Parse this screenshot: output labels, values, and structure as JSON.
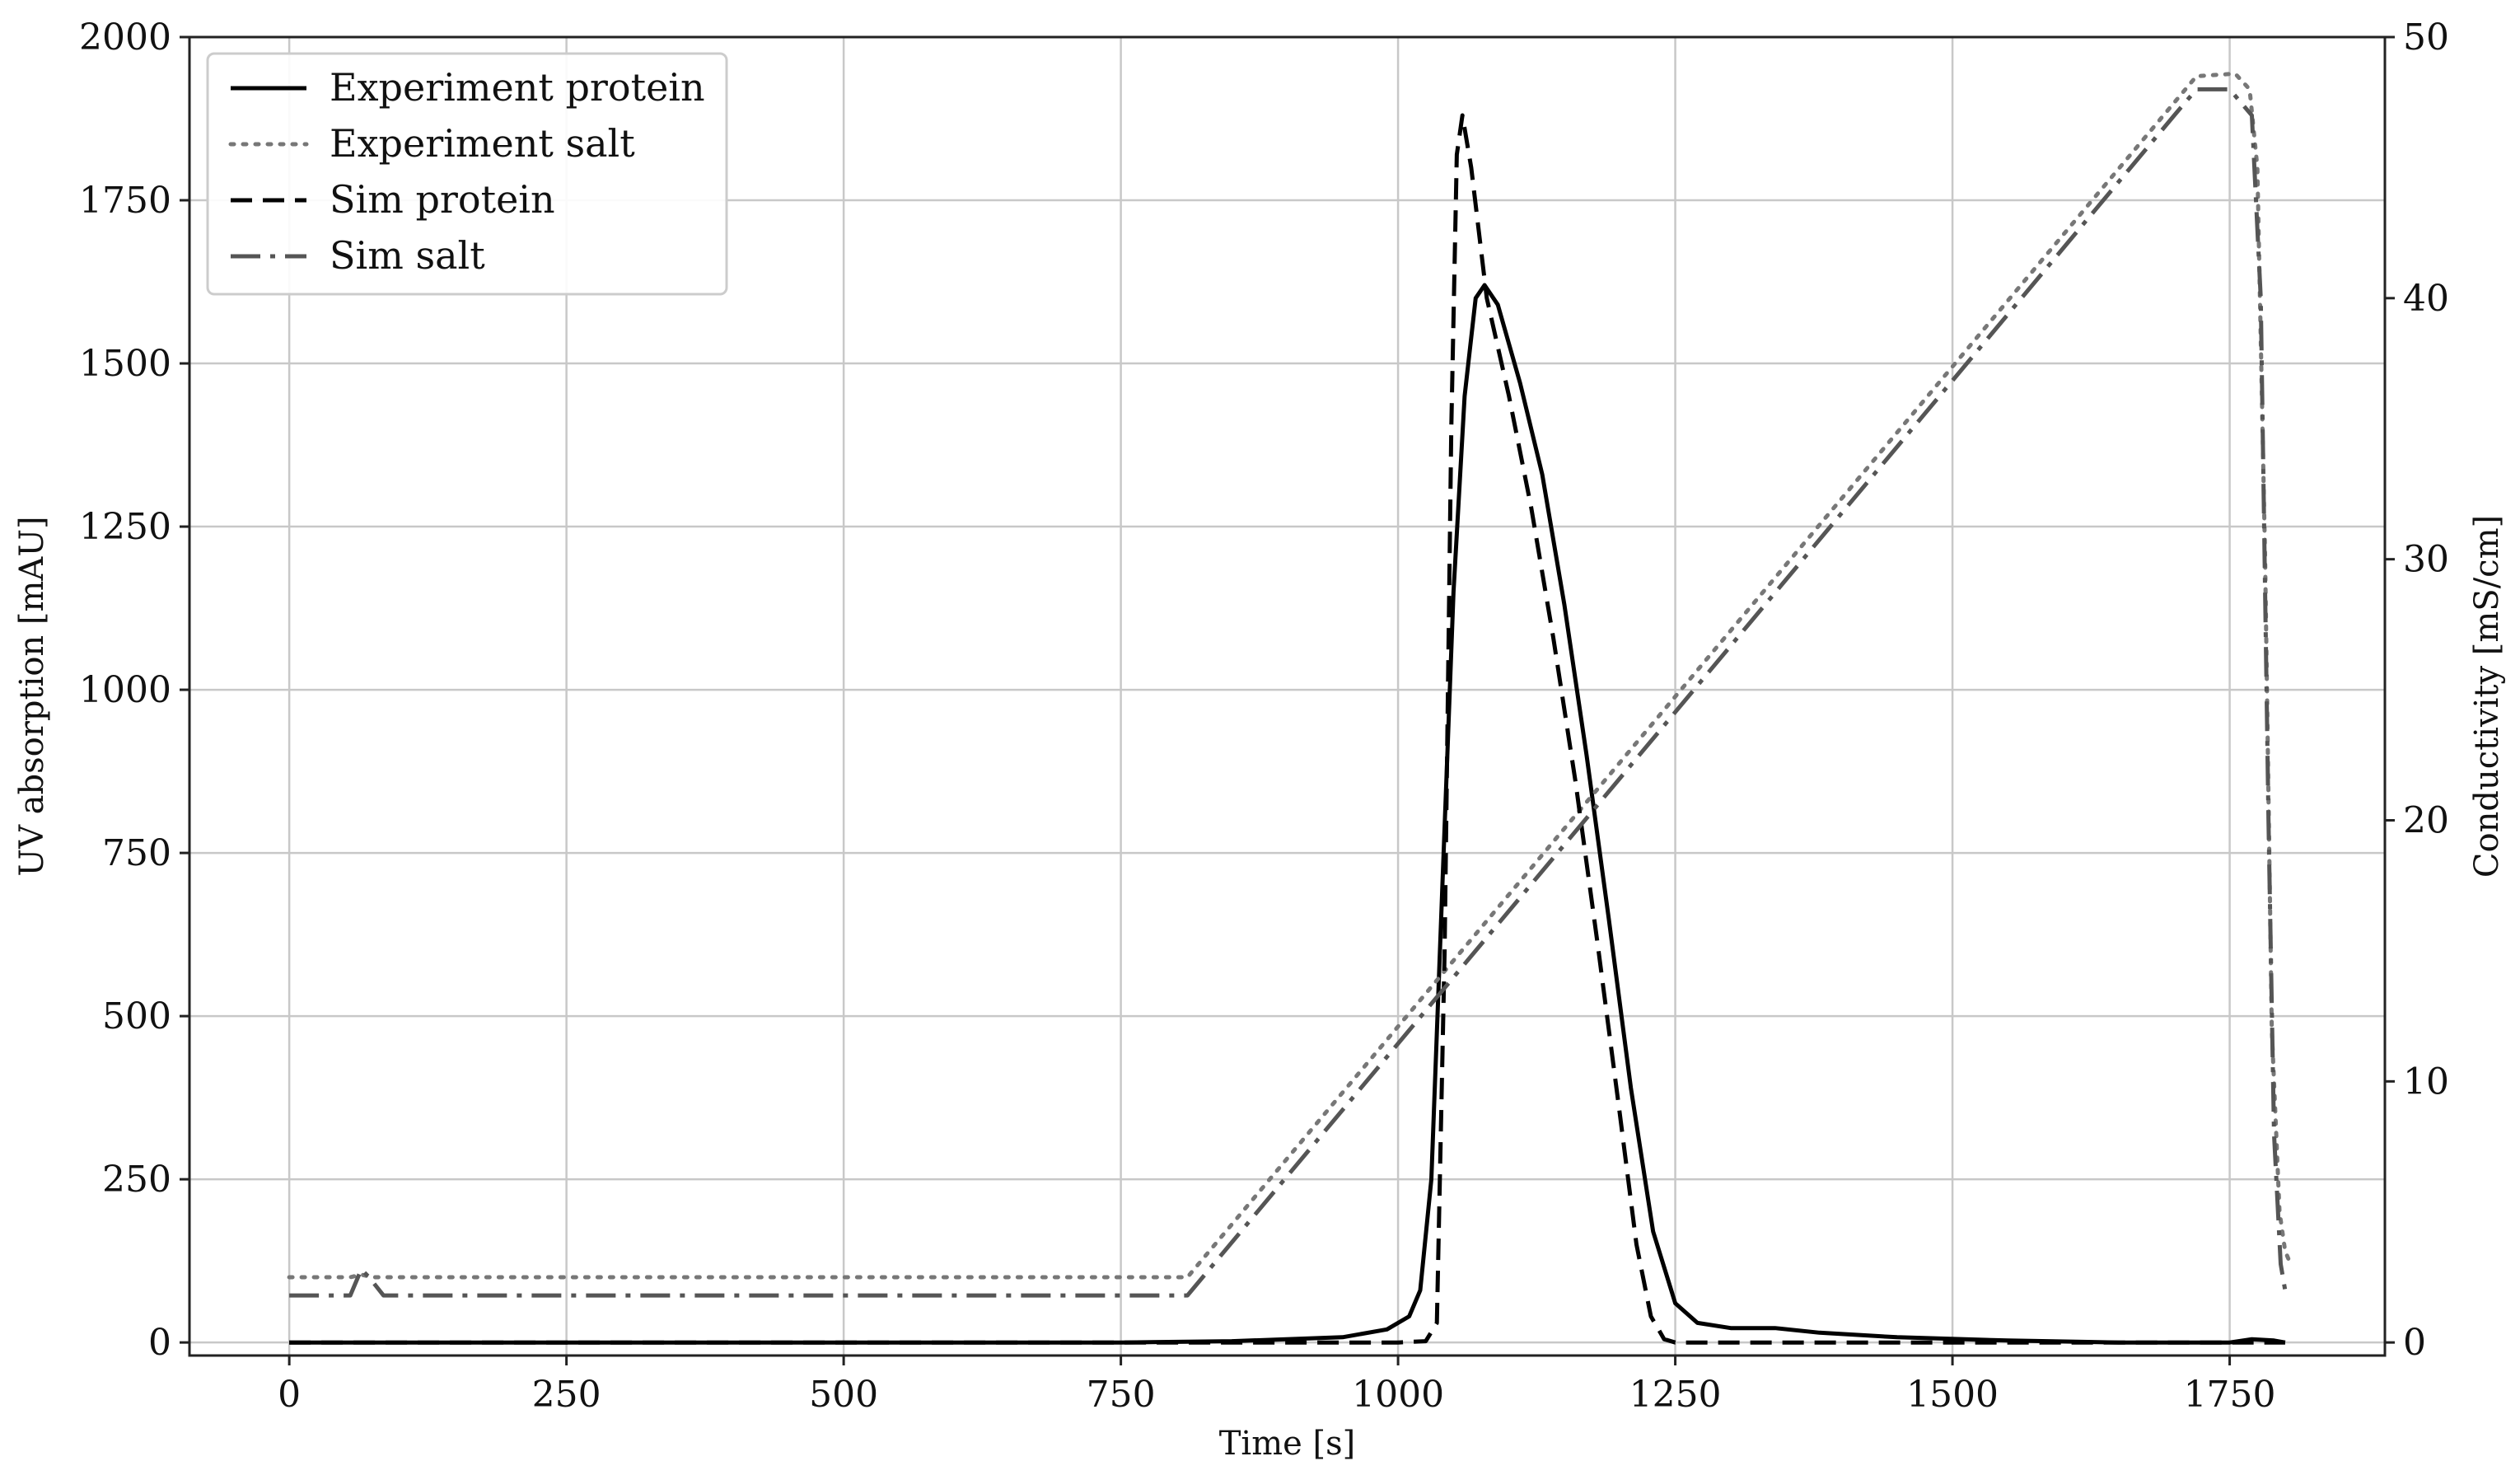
{
  "chart_data": {
    "type": "line",
    "xlabel": "Time [s]",
    "ylabel": "UV absorption [mAU]",
    "y2label": "Conductivity [mS/cm]",
    "xlim": [
      -90,
      1890
    ],
    "ylim": [
      -20,
      2000
    ],
    "y2lim": [
      -0.5,
      50
    ],
    "xticks": [
      0,
      250,
      500,
      750,
      1000,
      1250,
      1500,
      1750
    ],
    "yticks": [
      0,
      250,
      500,
      750,
      1000,
      1250,
      1500,
      1750,
      2000
    ],
    "y2ticks": [
      0,
      10,
      20,
      30,
      40,
      50
    ],
    "grid": true,
    "legend_position": "top-left",
    "series": [
      {
        "name": "Experiment protein",
        "axis": "left",
        "color": "#000000",
        "style": "solid",
        "points": [
          [
            0,
            0
          ],
          [
            200,
            0
          ],
          [
            500,
            0
          ],
          [
            750,
            0
          ],
          [
            850,
            2
          ],
          [
            950,
            8
          ],
          [
            990,
            20
          ],
          [
            1010,
            40
          ],
          [
            1020,
            80
          ],
          [
            1030,
            250
          ],
          [
            1040,
            700
          ],
          [
            1050,
            1150
          ],
          [
            1060,
            1450
          ],
          [
            1070,
            1600
          ],
          [
            1078,
            1620
          ],
          [
            1090,
            1590
          ],
          [
            1110,
            1470
          ],
          [
            1130,
            1330
          ],
          [
            1150,
            1130
          ],
          [
            1170,
            900
          ],
          [
            1190,
            650
          ],
          [
            1210,
            390
          ],
          [
            1230,
            170
          ],
          [
            1250,
            60
          ],
          [
            1270,
            30
          ],
          [
            1300,
            22
          ],
          [
            1340,
            22
          ],
          [
            1380,
            15
          ],
          [
            1450,
            8
          ],
          [
            1550,
            3
          ],
          [
            1650,
            0
          ],
          [
            1750,
            0
          ],
          [
            1770,
            5
          ],
          [
            1790,
            3
          ],
          [
            1800,
            0
          ]
        ]
      },
      {
        "name": "Experiment salt",
        "axis": "right",
        "color": "#777777",
        "style": "dotted",
        "points": [
          [
            0,
            2.5
          ],
          [
            55,
            2.5
          ],
          [
            65,
            2.6
          ],
          [
            75,
            2.5
          ],
          [
            100,
            2.5
          ],
          [
            810,
            2.5
          ],
          [
            1720,
            48.5
          ],
          [
            1755,
            48.6
          ],
          [
            1768,
            48.0
          ],
          [
            1775,
            45.0
          ],
          [
            1782,
            30.0
          ],
          [
            1788,
            12.0
          ],
          [
            1795,
            5.0
          ],
          [
            1800,
            3.5
          ],
          [
            1805,
            3.0
          ]
        ]
      },
      {
        "name": "Sim protein",
        "axis": "left",
        "color": "#000000",
        "style": "dashed",
        "points": [
          [
            0,
            0
          ],
          [
            500,
            0
          ],
          [
            1000,
            0
          ],
          [
            1025,
            2
          ],
          [
            1035,
            30
          ],
          [
            1042,
            600
          ],
          [
            1048,
            1400
          ],
          [
            1053,
            1820
          ],
          [
            1058,
            1880
          ],
          [
            1066,
            1800
          ],
          [
            1080,
            1600
          ],
          [
            1100,
            1450
          ],
          [
            1120,
            1280
          ],
          [
            1140,
            1080
          ],
          [
            1160,
            860
          ],
          [
            1180,
            610
          ],
          [
            1200,
            350
          ],
          [
            1215,
            150
          ],
          [
            1228,
            40
          ],
          [
            1240,
            5
          ],
          [
            1250,
            0
          ],
          [
            1500,
            0
          ],
          [
            1800,
            0
          ]
        ]
      },
      {
        "name": "Sim salt",
        "axis": "right",
        "color": "#555555",
        "style": "dashdot",
        "points": [
          [
            0,
            1.8
          ],
          [
            55,
            1.8
          ],
          [
            65,
            2.8
          ],
          [
            72,
            2.5
          ],
          [
            85,
            1.8
          ],
          [
            810,
            1.8
          ],
          [
            1700,
            47.0
          ],
          [
            1720,
            48.0
          ],
          [
            1750,
            48.0
          ],
          [
            1770,
            47.0
          ],
          [
            1778,
            40.0
          ],
          [
            1785,
            20.0
          ],
          [
            1790,
            8.0
          ],
          [
            1796,
            3.0
          ],
          [
            1800,
            2.0
          ]
        ]
      }
    ]
  }
}
